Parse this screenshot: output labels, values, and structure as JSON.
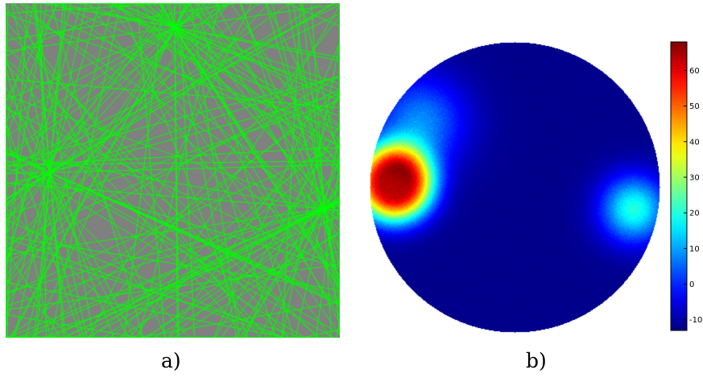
{
  "captions": {
    "a": "a)",
    "b": "b)"
  },
  "chart_data": [
    {
      "type": "other",
      "panel": "a)",
      "description_visual": "dense random straight lines on a square field",
      "colors": {
        "background": "#808080",
        "lines": "#00ff00"
      },
      "line_count": 240
    },
    {
      "type": "heatmap",
      "panel": "b)",
      "shape": "circular field",
      "colormap": "jet",
      "clim": [
        -13,
        68
      ],
      "colorbar_ticks": [
        -10,
        0,
        10,
        20,
        30,
        40,
        50,
        60
      ],
      "hotspots": [
        {
          "location": "left",
          "peak_value": 62
        },
        {
          "location": "right",
          "peak_value": 20
        },
        {
          "location": "upper-left",
          "peak_value": 8
        }
      ],
      "background_value": -12
    }
  ]
}
